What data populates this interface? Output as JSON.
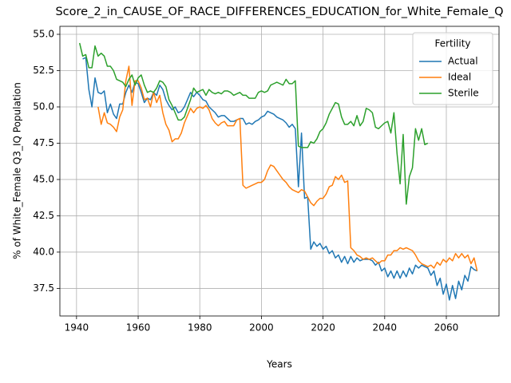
{
  "chart_data": {
    "type": "line",
    "title": "Score_2_in_CAUSE_OF_RACE_DIFFERENCES_EDUCATION_for_White_Female_Q",
    "x_label": "Years",
    "y_label": "% of White_Female Q3_IQ Population",
    "legend_title": "Fertility",
    "legend": "upper right",
    "grid": true,
    "x": [
      1941,
      1942,
      1943,
      1944,
      1945,
      1946,
      1947,
      1948,
      1949,
      1950,
      1951,
      1952,
      1953,
      1954,
      1955,
      1956,
      1957,
      1958,
      1959,
      1960,
      1961,
      1962,
      1963,
      1964,
      1965,
      1966,
      1967,
      1968,
      1969,
      1970,
      1971,
      1972,
      1973,
      1974,
      1975,
      1976,
      1977,
      1978,
      1979,
      1980,
      1981,
      1982,
      1983,
      1984,
      1985,
      1986,
      1987,
      1988,
      1989,
      1990,
      1991,
      1992,
      1993,
      1994,
      1995,
      1996,
      1997,
      1998,
      1999,
      2000,
      2001,
      2002,
      2003,
      2004,
      2005,
      2006,
      2007,
      2008,
      2009,
      2010,
      2011,
      2012,
      2013,
      2014,
      2015,
      2016,
      2017,
      2018,
      2019,
      2020,
      2021,
      2022,
      2023,
      2024,
      2025,
      2026,
      2027,
      2028,
      2029,
      2030,
      2031,
      2032,
      2033,
      2034,
      2035,
      2036,
      2037,
      2038,
      2039,
      2040,
      2041,
      2042,
      2043,
      2044,
      2045,
      2046,
      2047,
      2048,
      2049,
      2050,
      2051,
      2052,
      2053,
      2054,
      2055,
      2056,
      2057,
      2058,
      2059,
      2060,
      2061,
      2062,
      2063,
      2064,
      2065,
      2066,
      2067,
      2068,
      2069,
      2070
    ],
    "series": [
      {
        "name": "Actual",
        "color": "#1f77b4",
        "values": [
          null,
          53.3,
          53.4,
          51.2,
          50.0,
          52.0,
          51.0,
          50.9,
          51.1,
          49.6,
          50.2,
          49.5,
          49.2,
          50.2,
          50.2,
          51.0,
          51.5,
          51.0,
          51.7,
          51.6,
          51.0,
          50.3,
          50.6,
          50.5,
          51.0,
          50.8,
          51.5,
          51.2,
          50.5,
          50.1,
          49.8,
          50.0,
          49.6,
          49.7,
          50.0,
          50.5,
          51.0,
          50.7,
          51.0,
          50.8,
          50.5,
          50.4,
          50.0,
          49.8,
          49.6,
          49.3,
          49.4,
          49.4,
          49.2,
          49.0,
          49.0,
          49.1,
          49.2,
          49.2,
          48.8,
          48.9,
          48.8,
          49.0,
          49.1,
          49.3,
          49.4,
          49.7,
          49.6,
          49.5,
          49.3,
          49.2,
          49.1,
          48.9,
          48.6,
          48.8,
          48.5,
          44.5,
          48.2,
          43.7,
          43.8,
          40.2,
          40.7,
          40.4,
          40.6,
          40.2,
          40.4,
          39.9,
          40.1,
          39.6,
          39.8,
          39.3,
          39.7,
          39.2,
          39.7,
          39.3,
          39.6,
          39.4,
          39.5,
          39.5,
          39.5,
          39.4,
          39.1,
          39.3,
          38.7,
          38.9,
          38.3,
          38.7,
          38.2,
          38.7,
          38.2,
          38.7,
          38.3,
          38.9,
          38.5,
          39.1,
          38.9,
          39.1,
          39.0,
          38.9,
          38.4,
          38.7,
          37.7,
          38.2,
          37.1,
          37.8,
          36.7,
          37.7,
          36.8,
          38.0,
          37.4,
          38.4,
          38.0,
          39.0,
          38.8,
          38.7
        ]
      },
      {
        "name": "Ideal",
        "color": "#ff7f0e",
        "values": [
          null,
          null,
          null,
          null,
          null,
          null,
          50.0,
          48.8,
          49.6,
          48.9,
          48.8,
          48.6,
          48.3,
          49.3,
          49.8,
          51.8,
          52.8,
          50.1,
          51.8,
          51.8,
          51.3,
          50.5,
          50.6,
          50.0,
          51.0,
          50.3,
          50.8,
          49.6,
          48.8,
          48.4,
          47.6,
          47.8,
          47.8,
          48.2,
          48.9,
          49.4,
          49.9,
          49.6,
          49.9,
          50.0,
          49.9,
          50.1,
          49.8,
          49.2,
          48.9,
          48.7,
          48.9,
          49.0,
          48.7,
          48.7,
          48.7,
          49.1,
          49.2,
          44.6,
          44.4,
          44.5,
          44.6,
          44.7,
          44.8,
          44.8,
          45.0,
          45.6,
          46.0,
          45.9,
          45.6,
          45.3,
          45.0,
          44.8,
          44.5,
          44.3,
          44.2,
          44.1,
          44.3,
          44.2,
          43.8,
          43.4,
          43.2,
          43.5,
          43.7,
          43.7,
          44.0,
          44.5,
          44.6,
          45.2,
          45.0,
          45.3,
          44.8,
          44.9,
          40.3,
          40.1,
          39.8,
          39.7,
          39.5,
          39.6,
          39.5,
          39.6,
          39.4,
          39.2,
          39.4,
          39.4,
          39.8,
          39.8,
          40.1,
          40.1,
          40.3,
          40.2,
          40.3,
          40.2,
          40.1,
          39.8,
          39.4,
          39.2,
          39.1,
          39.0,
          39.1,
          38.9,
          39.3,
          39.1,
          39.5,
          39.3,
          39.6,
          39.4,
          39.9,
          39.6,
          39.9,
          39.6,
          39.8,
          39.2,
          39.6,
          38.7
        ]
      },
      {
        "name": "Sterile",
        "color": "#2ca02c",
        "values": [
          54.4,
          53.5,
          53.6,
          52.7,
          52.7,
          54.2,
          53.5,
          53.7,
          53.5,
          52.8,
          52.8,
          52.5,
          51.9,
          51.8,
          51.7,
          51.4,
          51.9,
          52.2,
          51.5,
          52.0,
          52.2,
          51.5,
          51.0,
          51.1,
          51.0,
          51.3,
          51.8,
          51.7,
          51.4,
          50.5,
          50.1,
          49.6,
          49.1,
          49.1,
          49.3,
          49.9,
          50.5,
          51.3,
          51.0,
          51.1,
          51.2,
          50.8,
          51.2,
          51.0,
          50.9,
          51.0,
          50.9,
          51.1,
          51.1,
          51.0,
          50.8,
          50.9,
          51.0,
          50.8,
          50.8,
          50.6,
          50.6,
          50.6,
          51.0,
          51.1,
          51.0,
          51.1,
          51.5,
          51.6,
          51.7,
          51.6,
          51.5,
          51.9,
          51.6,
          51.6,
          51.8,
          47.3,
          47.2,
          47.2,
          47.2,
          47.6,
          47.5,
          47.8,
          48.3,
          48.5,
          48.9,
          49.5,
          49.9,
          50.3,
          50.2,
          49.3,
          48.8,
          48.8,
          49.0,
          48.7,
          49.4,
          48.7,
          49.0,
          49.9,
          49.8,
          49.6,
          48.6,
          48.5,
          48.7,
          48.9,
          49.0,
          48.2,
          49.6,
          46.8,
          44.7,
          48.1,
          43.3,
          45.2,
          45.8,
          48.5,
          47.7,
          48.5,
          47.4,
          47.5,
          null,
          null,
          null,
          null,
          null,
          null,
          null,
          null,
          null,
          null,
          null,
          null,
          null,
          null,
          null,
          null
        ]
      }
    ],
    "xlim": [
      1934.6,
      2077.1
    ],
    "xticks": [
      1940,
      1960,
      1980,
      2000,
      2020,
      2040,
      2060
    ],
    "ylim": [
      35.6,
      55.55
    ],
    "yticks": [
      37.5,
      {
        "value": 40,
        "label": "40.0"
      },
      42.5,
      {
        "value": 45,
        "label": "45.0"
      },
      47.5,
      {
        "value": 50,
        "label": "50.0"
      },
      52.5,
      {
        "value": 55,
        "label": "55.0"
      }
    ]
  }
}
